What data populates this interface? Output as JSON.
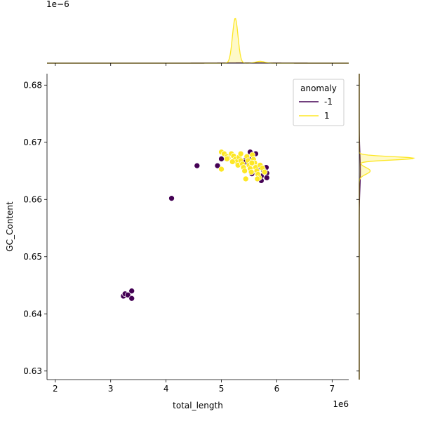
{
  "chart_data": {
    "type": "scatter",
    "title": "",
    "xlabel": "total_length",
    "ylabel": "GC_Content",
    "x_offset_label": "1e6",
    "xlim": [
      1.85,
      7.3
    ],
    "ylim": [
      0.6285,
      0.682
    ],
    "x_ticks": [
      2,
      3,
      4,
      5,
      6,
      7
    ],
    "x_tick_labels": [
      "2",
      "3",
      "4",
      "5",
      "6",
      "7"
    ],
    "y_ticks": [
      0.63,
      0.64,
      0.65,
      0.66,
      0.67,
      0.68
    ],
    "y_tick_labels": [
      "0.63",
      "0.64",
      "0.65",
      "0.66",
      "0.67",
      "0.68"
    ],
    "grid": false,
    "legend": {
      "title": "anomaly",
      "placement": "upper-right",
      "entries": [
        {
          "label": "-1",
          "color": "#440154"
        },
        {
          "label": "1",
          "color": "#fde725"
        }
      ]
    },
    "series": [
      {
        "name": "-1",
        "color": "#440154",
        "points": [
          [
            3.23,
            0.6431
          ],
          [
            3.26,
            0.6435
          ],
          [
            3.31,
            0.6433
          ],
          [
            3.38,
            0.644
          ],
          [
            3.38,
            0.6427
          ],
          [
            4.1,
            0.6602
          ],
          [
            4.56,
            0.6659
          ],
          [
            4.93,
            0.6659
          ],
          [
            5.0,
            0.6671
          ],
          [
            5.45,
            0.6671
          ],
          [
            5.52,
            0.6683
          ],
          [
            5.5,
            0.667
          ],
          [
            5.62,
            0.668
          ],
          [
            5.65,
            0.6654
          ],
          [
            5.72,
            0.6641
          ],
          [
            5.72,
            0.6633
          ],
          [
            5.81,
            0.6656
          ],
          [
            5.82,
            0.6646
          ],
          [
            5.82,
            0.6638
          ],
          [
            5.76,
            0.6651
          ],
          [
            5.6,
            0.6662
          ],
          [
            5.42,
            0.6665
          ],
          [
            5.55,
            0.6645
          ]
        ]
      },
      {
        "name": "1",
        "color": "#fde725",
        "points": [
          [
            5.0,
            0.6683
          ],
          [
            5.05,
            0.668
          ],
          [
            5.1,
            0.6675
          ],
          [
            5.12,
            0.6672
          ],
          [
            5.18,
            0.668
          ],
          [
            5.22,
            0.6676
          ],
          [
            5.25,
            0.667
          ],
          [
            5.28,
            0.6666
          ],
          [
            5.3,
            0.666
          ],
          [
            5.32,
            0.6674
          ],
          [
            5.35,
            0.6668
          ],
          [
            5.38,
            0.6662
          ],
          [
            5.4,
            0.6656
          ],
          [
            5.42,
            0.665
          ],
          [
            5.44,
            0.6636
          ],
          [
            5.46,
            0.6675
          ],
          [
            5.48,
            0.6668
          ],
          [
            5.5,
            0.666
          ],
          [
            5.52,
            0.6654
          ],
          [
            5.54,
            0.6648
          ],
          [
            5.56,
            0.6678
          ],
          [
            5.58,
            0.667
          ],
          [
            5.6,
            0.6664
          ],
          [
            5.62,
            0.6656
          ],
          [
            5.64,
            0.665
          ],
          [
            5.66,
            0.6644
          ],
          [
            5.68,
            0.6638
          ],
          [
            5.7,
            0.666
          ],
          [
            5.74,
            0.6655
          ],
          [
            5.78,
            0.6648
          ],
          [
            5.2,
            0.6666
          ],
          [
            5.35,
            0.668
          ],
          [
            5.0,
            0.6653
          ],
          [
            5.55,
            0.6664
          ],
          [
            5.65,
            0.6636
          ],
          [
            5.1,
            0.6671
          ]
        ]
      }
    ],
    "marginal_x": {
      "offset_label": "1e−6",
      "series": [
        {
          "name": "-1",
          "color": "#440154",
          "peak_x": 5.5,
          "sd": 0.5,
          "relative_height": 0.005
        },
        {
          "name": "1",
          "color": "#fde725",
          "peak_x": 5.25,
          "sd": 0.05,
          "relative_height": 1.0,
          "secondary": {
            "peak_x": 5.7,
            "sd": 0.08,
            "relative_height": 0.04
          }
        }
      ]
    },
    "marginal_y": {
      "series": [
        {
          "name": "-1",
          "color": "#440154",
          "peak_y": 0.665,
          "sd": 0.003,
          "relative_height": 0.02
        },
        {
          "name": "1",
          "color": "#fde725",
          "peak_y": 0.6672,
          "sd": 0.0003,
          "relative_height": 1.0,
          "secondary": {
            "peak_y": 0.665,
            "sd": 0.0006,
            "relative_height": 0.2
          }
        }
      ]
    }
  }
}
